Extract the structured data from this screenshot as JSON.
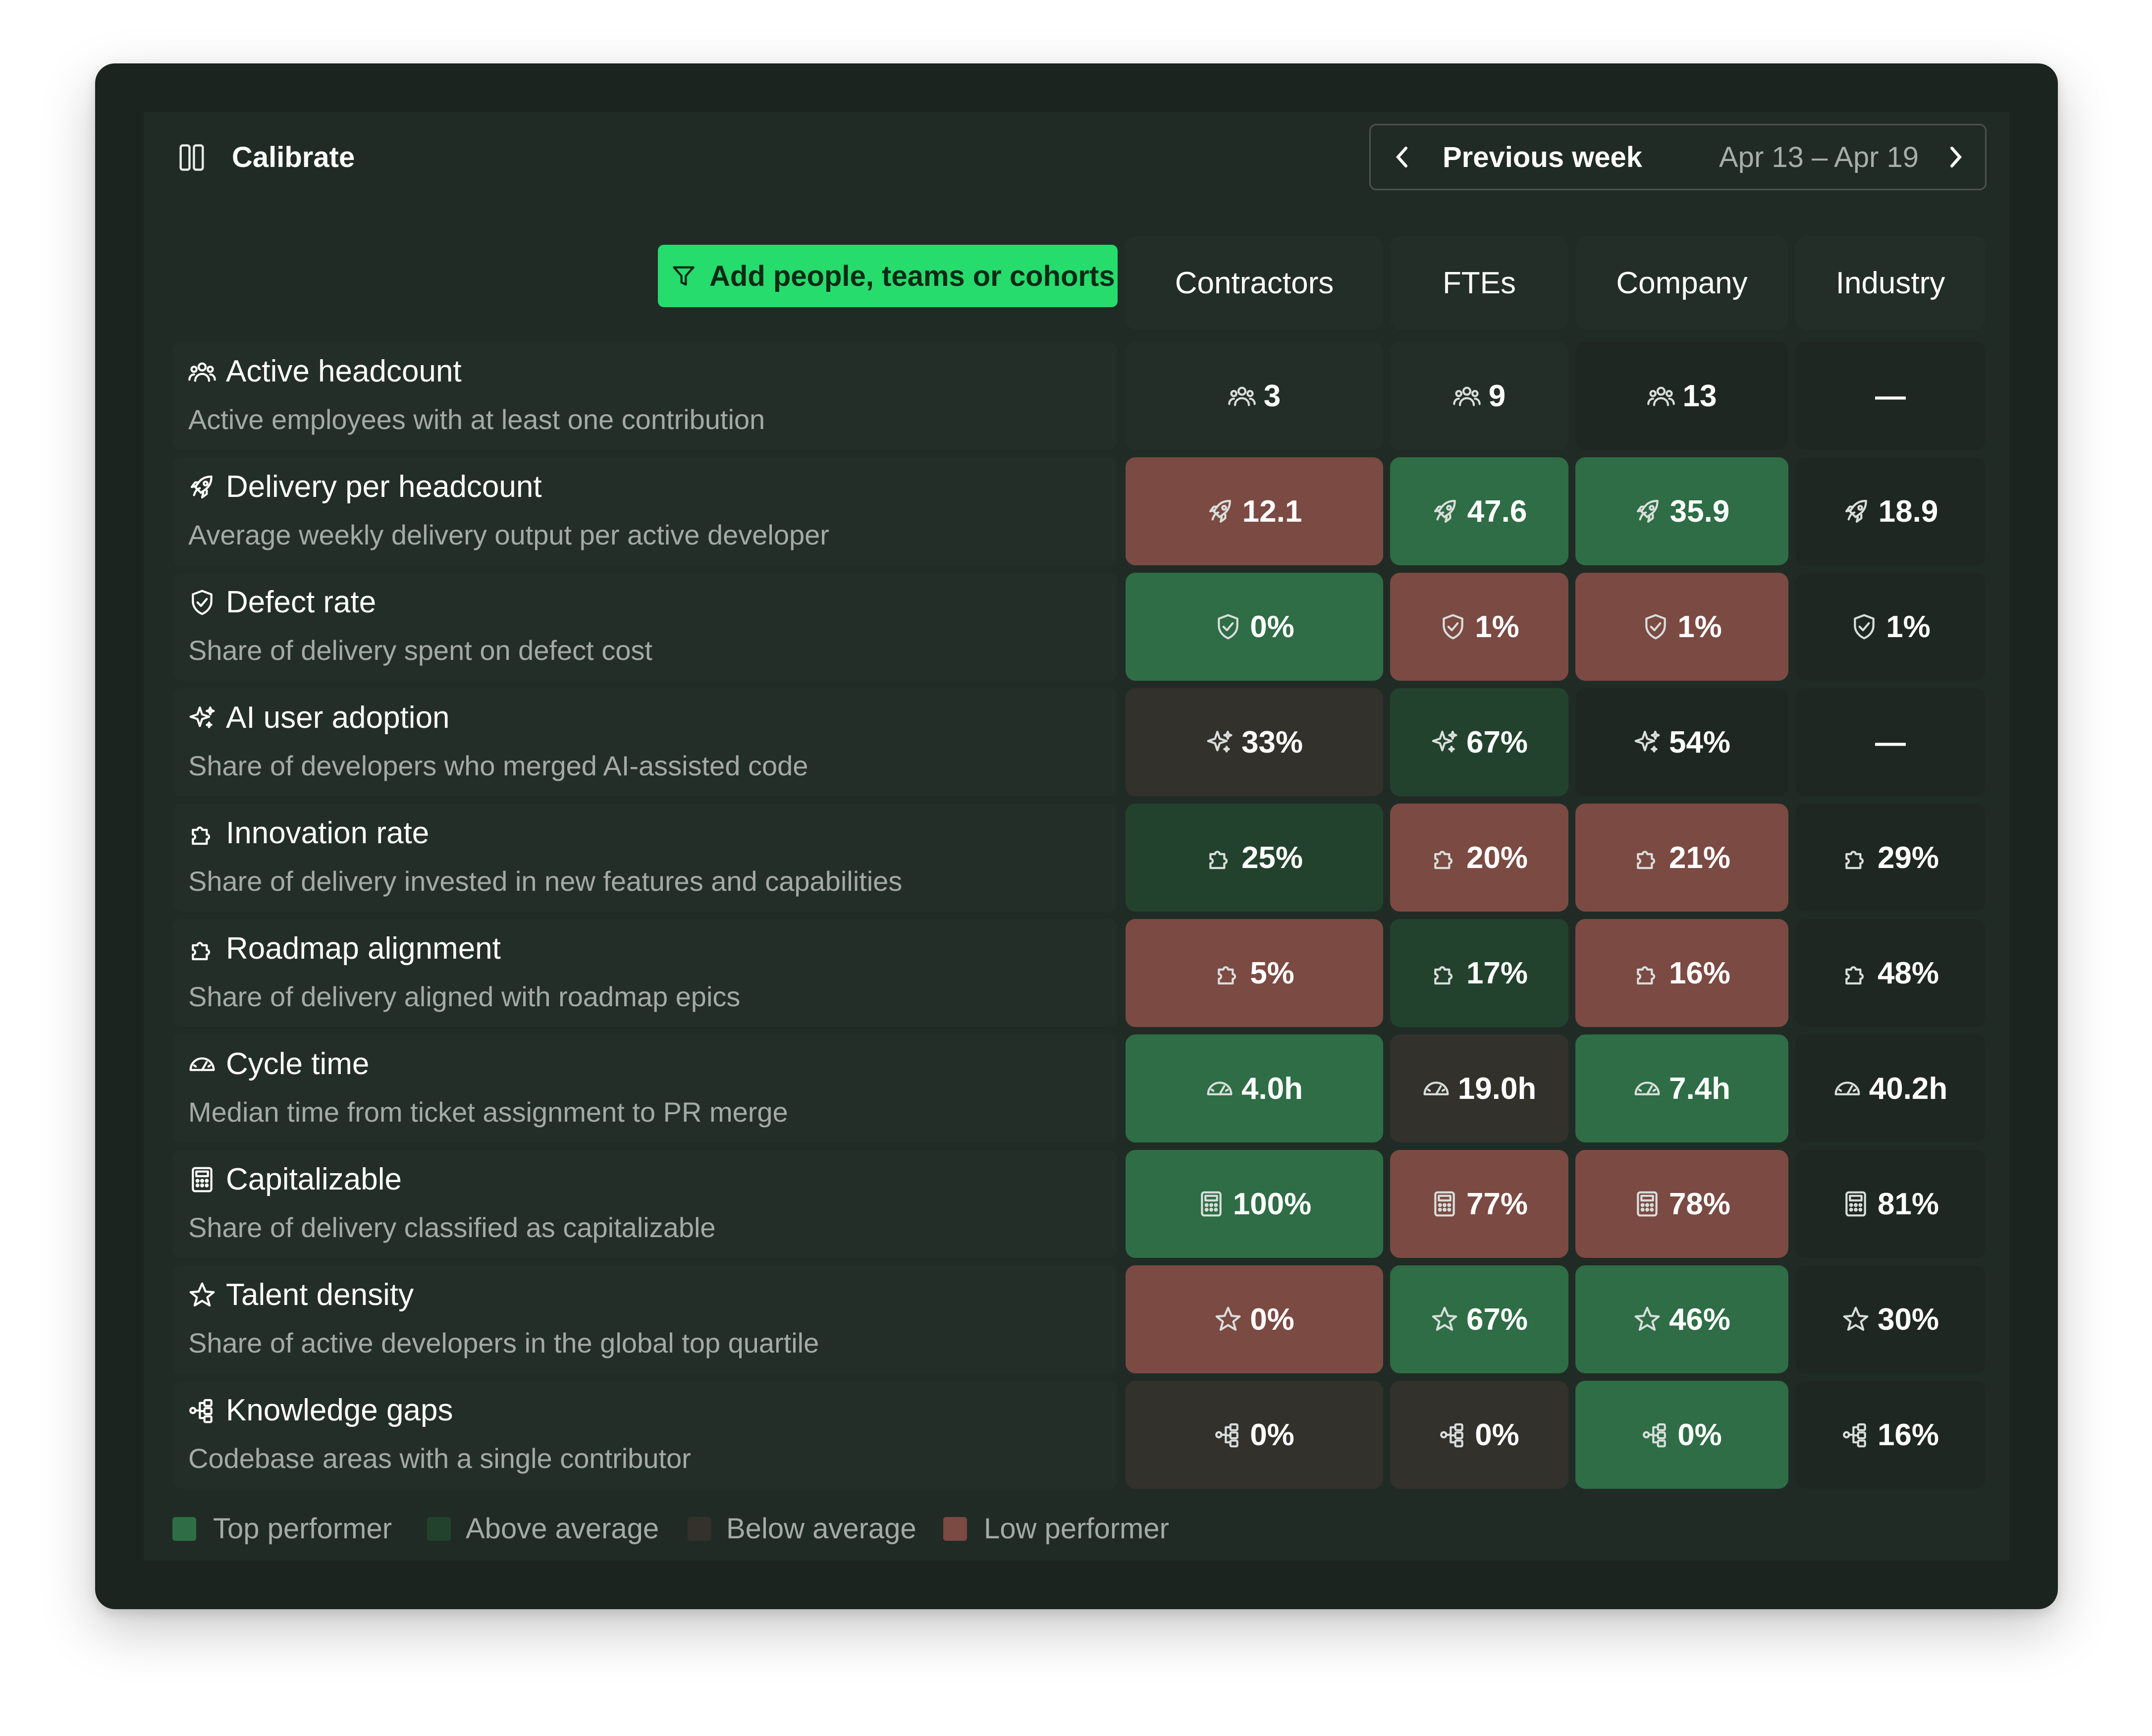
{
  "app": {
    "title": "Calibrate"
  },
  "week_nav": {
    "label": "Previous week",
    "range": "Apr 13 – Apr 19"
  },
  "add_button": {
    "label": "Add people, teams or cohorts"
  },
  "columns": [
    "Contractors",
    "FTEs",
    "Company",
    "Industry"
  ],
  "colors": {
    "top_performer": "#2e6d45",
    "above_average": "#23422e",
    "below_average": "#33312c",
    "low_performer": "#7b4a43",
    "accent": "#26dc6c"
  },
  "metrics": [
    {
      "icon": "people-icon",
      "name": "Active headcount",
      "description": "Active employees with at least one contribution",
      "values": [
        "3",
        "9",
        "13",
        "—"
      ],
      "status": [
        "neutral",
        "neutral",
        "none",
        "none"
      ]
    },
    {
      "icon": "rocket-icon",
      "name": "Delivery per headcount",
      "description": "Average weekly delivery output per active developer",
      "values": [
        "12.1",
        "47.6",
        "35.9",
        "18.9"
      ],
      "status": [
        "low",
        "top",
        "top",
        "none"
      ]
    },
    {
      "icon": "shield-check-icon",
      "name": "Defect rate",
      "description": "Share of delivery spent on defect cost",
      "values": [
        "0%",
        "1%",
        "1%",
        "1%"
      ],
      "status": [
        "top",
        "low",
        "low",
        "none"
      ]
    },
    {
      "icon": "sparkles-icon",
      "name": "AI user adoption",
      "description": "Share of developers who merged AI-assisted code",
      "values": [
        "33%",
        "67%",
        "54%",
        "—"
      ],
      "status": [
        "below",
        "above",
        "none",
        "none"
      ]
    },
    {
      "icon": "puzzle-icon",
      "name": "Innovation rate",
      "description": "Share of delivery invested in new features and capabilities",
      "values": [
        "25%",
        "20%",
        "21%",
        "29%"
      ],
      "status": [
        "above",
        "low",
        "low",
        "none"
      ]
    },
    {
      "icon": "puzzle-icon",
      "name": "Roadmap alignment",
      "description": "Share of delivery aligned with roadmap epics",
      "values": [
        "5%",
        "17%",
        "16%",
        "48%"
      ],
      "status": [
        "low",
        "above",
        "low",
        "none"
      ]
    },
    {
      "icon": "gauge-icon",
      "name": "Cycle time",
      "description": "Median time from ticket assignment to PR merge",
      "values": [
        "4.0h",
        "19.0h",
        "7.4h",
        "40.2h"
      ],
      "status": [
        "top",
        "below",
        "top",
        "none"
      ]
    },
    {
      "icon": "calculator-icon",
      "name": "Capitalizable",
      "description": "Share of delivery classified as capitalizable",
      "values": [
        "100%",
        "77%",
        "78%",
        "81%"
      ],
      "status": [
        "top",
        "low",
        "low",
        "none"
      ]
    },
    {
      "icon": "star-icon",
      "name": "Talent density",
      "description": "Share of active developers in the global top quartile",
      "values": [
        "0%",
        "67%",
        "46%",
        "30%"
      ],
      "status": [
        "low",
        "top",
        "top",
        "none"
      ]
    },
    {
      "icon": "network-icon",
      "name": "Knowledge gaps",
      "description": "Codebase areas with a single contributor",
      "values": [
        "0%",
        "0%",
        "0%",
        "16%"
      ],
      "status": [
        "below",
        "below",
        "top",
        "none"
      ]
    }
  ],
  "legend": [
    {
      "key": "top",
      "label": "Top performer"
    },
    {
      "key": "above",
      "label": "Above average"
    },
    {
      "key": "below",
      "label": "Below average"
    },
    {
      "key": "low",
      "label": "Low performer"
    }
  ]
}
